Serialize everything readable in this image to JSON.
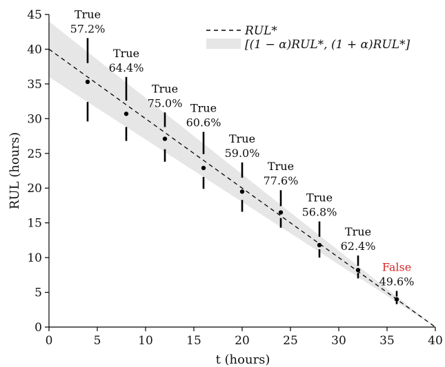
{
  "chart_data": {
    "type": "scatter",
    "xlabel": "t (hours)",
    "ylabel": "RUL (hours)",
    "xlim": [
      0,
      40
    ],
    "ylim": [
      0,
      45
    ],
    "xticks": [
      0,
      5,
      10,
      15,
      20,
      25,
      30,
      35,
      40
    ],
    "yticks": [
      0,
      5,
      10,
      15,
      20,
      25,
      30,
      35,
      40,
      45
    ],
    "grid": false,
    "legend_position": "top-right",
    "legend": {
      "line_label": "RUL*",
      "band_label": "[(1 − α)RUL*, (1 + α)RUL*]"
    },
    "reference_line": {
      "name": "RUL*",
      "x": [
        0,
        40
      ],
      "y": [
        40,
        0
      ],
      "style": "dashed"
    },
    "band": {
      "name": "[(1 − α)RUL*, (1 + α)RUL*]",
      "alpha": 0.1,
      "color": "#e6e6e6"
    },
    "points": [
      {
        "x": 4,
        "y": 35.3,
        "upper": [
          38.0,
          41.6
        ],
        "lower": [
          29.6,
          32.4
        ],
        "status": "True",
        "pct": "57.2%"
      },
      {
        "x": 8,
        "y": 30.7,
        "upper": [
          32.6,
          36.0
        ],
        "lower": [
          26.8,
          28.8
        ],
        "status": "True",
        "pct": "64.4%"
      },
      {
        "x": 12,
        "y": 27.1,
        "upper": [
          28.8,
          30.9
        ],
        "lower": [
          23.8,
          25.6
        ],
        "status": "True",
        "pct": "75.0%"
      },
      {
        "x": 16,
        "y": 22.9,
        "upper": [
          24.9,
          28.1
        ],
        "lower": [
          19.9,
          21.6
        ],
        "status": "True",
        "pct": "60.6%"
      },
      {
        "x": 20,
        "y": 19.5,
        "upper": [
          21.5,
          23.7
        ],
        "lower": [
          16.6,
          18.3
        ],
        "status": "True",
        "pct": "59.0%"
      },
      {
        "x": 24,
        "y": 16.5,
        "upper": [
          17.4,
          19.7
        ],
        "lower": [
          14.3,
          15.7
        ],
        "status": "True",
        "pct": "77.6%"
      },
      {
        "x": 28,
        "y": 11.8,
        "upper": [
          13.0,
          15.2
        ],
        "lower": [
          10.0,
          11.2
        ],
        "status": "True",
        "pct": "56.8%"
      },
      {
        "x": 32,
        "y": 8.2,
        "upper": [
          8.8,
          10.3
        ],
        "lower": [
          7.0,
          7.8
        ],
        "status": "True",
        "pct": "62.4%"
      },
      {
        "x": 36,
        "y": 4.0,
        "upper": [
          4.4,
          5.2
        ],
        "lower": [
          3.3,
          3.7
        ],
        "status": "False",
        "pct": "49.6%"
      }
    ],
    "colors": {
      "true": "#000000",
      "false": "#d62728",
      "band": "#e6e6e6"
    }
  }
}
